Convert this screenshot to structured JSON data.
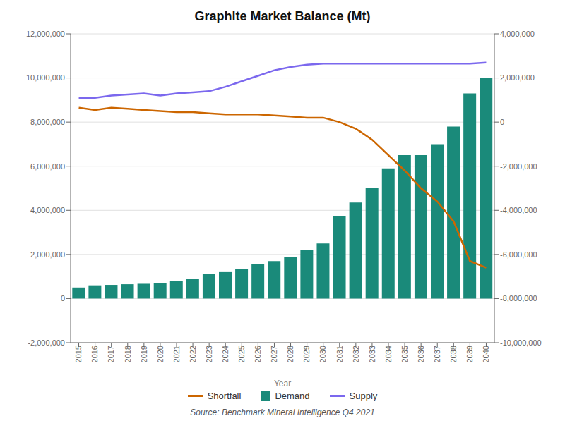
{
  "chart_data": {
    "type": "bar",
    "title": "Graphite Market Balance (Mt)",
    "x_label": "Year",
    "annotations": [
      "Source: Benchmark Mineral Intelligence Q4 2021"
    ],
    "categories": [
      "2015",
      "2016",
      "2017",
      "2018",
      "2019",
      "2020",
      "2021",
      "2022",
      "2023",
      "2024",
      "2025",
      "2026",
      "2027",
      "2028",
      "2029",
      "2030",
      "2031",
      "2032",
      "2033",
      "2034",
      "2035",
      "2036",
      "2037",
      "2038",
      "2039",
      "2040"
    ],
    "series": [
      {
        "name": "Shortfall",
        "type": "line",
        "color": "#CC6600",
        "values": [
          8650000,
          8550000,
          8650000,
          8600000,
          8550000,
          8500000,
          8450000,
          8450000,
          8400000,
          8350000,
          8350000,
          8350000,
          8300000,
          8250000,
          8200000,
          8200000,
          8000000,
          7700000,
          7200000,
          6500000,
          5800000,
          5000000,
          4400000,
          3500000,
          1700000,
          1400000
        ]
      },
      {
        "name": "Demand",
        "type": "bar",
        "color": "#1a8a7a",
        "values": [
          500000,
          600000,
          620000,
          650000,
          670000,
          700000,
          800000,
          900000,
          1100000,
          1200000,
          1350000,
          1550000,
          1700000,
          1900000,
          2200000,
          2500000,
          3750000,
          4350000,
          5000000,
          5900000,
          6500000,
          6500000,
          7000000,
          7800000,
          9300000,
          10000000
        ]
      },
      {
        "name": "Supply",
        "type": "line",
        "color": "#7B68EE",
        "values": [
          9100000,
          9100000,
          9200000,
          9250000,
          9300000,
          9200000,
          9300000,
          9350000,
          9400000,
          9600000,
          9850000,
          10100000,
          10350000,
          10500000,
          10600000,
          10650000,
          10650000,
          10650000,
          10650000,
          10650000,
          10650000,
          10650000,
          10650000,
          10650000,
          10650000,
          10700000
        ]
      }
    ],
    "ylim": [
      -2000000,
      12000000
    ],
    "yticks": [
      {
        "value": -2000000,
        "label": "-2,000,000"
      },
      0,
      {
        "value": 2000000,
        "label": "2,000,000"
      },
      {
        "value": 4000000,
        "label": "4,000,000"
      },
      {
        "value": 6000000,
        "label": "6,000,000"
      },
      {
        "value": 8000000,
        "label": "8,000,000"
      },
      {
        "value": 10000000,
        "label": "10,000,000"
      },
      {
        "value": 12000000,
        "label": "12,000,000"
      }
    ],
    "y2lim": [
      -10000000,
      4000000
    ],
    "y2ticks": [
      {
        "value": -10000000,
        "label": "-10,000,000"
      },
      {
        "value": -8000000,
        "label": "-8,000,000"
      },
      {
        "value": -6000000,
        "label": "-6,000,000"
      },
      {
        "value": -4000000,
        "label": "-4,000,000"
      },
      {
        "value": -2000000,
        "label": "-2,000,000"
      },
      0,
      {
        "value": 2000000,
        "label": "2,000,000"
      },
      {
        "value": 4000000,
        "label": "4,000,000"
      }
    ],
    "grid": true,
    "legend": "bottom"
  }
}
